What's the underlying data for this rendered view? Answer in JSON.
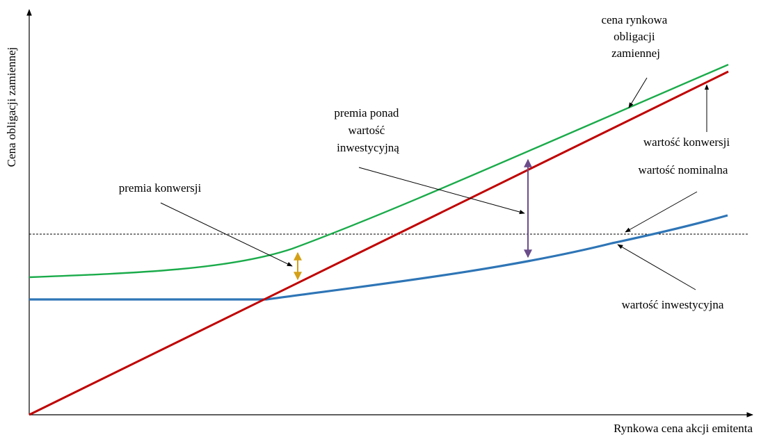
{
  "axes": {
    "x_label": "Rynkowa cena akcji emitenta",
    "y_label": "Cena obligacji zamiennej"
  },
  "curves": [
    {
      "id": "market-price",
      "label_lines": [
        "cena rynkowa",
        "obligacji",
        "zamiennej"
      ],
      "color": "#1aab4a"
    },
    {
      "id": "conversion-value",
      "label_lines": [
        "wartość konwersji"
      ],
      "color": "#c00000"
    },
    {
      "id": "face-value",
      "label_lines": [
        "wartość nominalna"
      ],
      "color": "#000000",
      "style": "dashed"
    },
    {
      "id": "investment-value",
      "label_lines": [
        "wartość inwestycyjna"
      ],
      "color": "#2e75b6"
    }
  ],
  "annotations": [
    {
      "id": "conversion-premium",
      "label_lines": [
        "premia konwersji"
      ],
      "color": "#d4a017"
    },
    {
      "id": "investment-premium",
      "label_lines": [
        "premia ponad",
        "wartość",
        "inwestycyjną"
      ],
      "color": "#6b4c8a"
    }
  ]
}
